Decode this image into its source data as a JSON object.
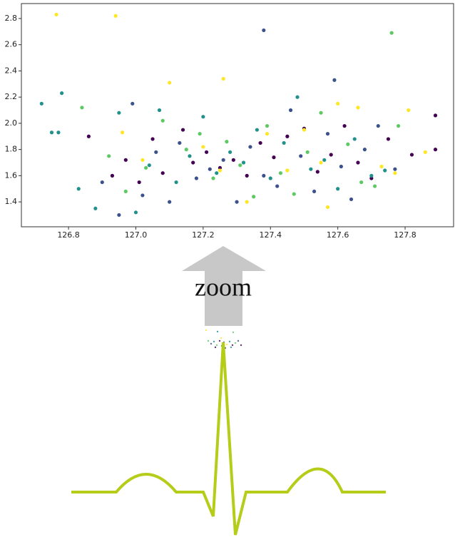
{
  "chart_data": {
    "type": "scatter",
    "xlim": [
      126.66,
      127.944
    ],
    "ylim": [
      1.21,
      2.914
    ],
    "xticks": [
      126.8,
      {
        "value": 127,
        "label": "127.0"
      },
      127.2,
      127.4,
      127.6,
      127.8
    ],
    "yticks": [
      1.4,
      1.6,
      1.8,
      {
        "value": 2,
        "label": "2.0"
      },
      2.2,
      2.4,
      2.6,
      2.8
    ],
    "annotations": [
      "zoom"
    ],
    "series": [
      {
        "color": "#440154",
        "x": [
          126.86,
          126.93,
          126.97,
          127.01,
          127.05,
          127.08,
          127.14,
          127.17,
          127.21,
          127.25,
          127.29,
          127.33,
          127.37,
          127.41,
          127.45,
          127.5,
          127.54,
          127.58,
          127.62,
          127.66,
          127.7,
          127.75,
          127.82,
          127.89,
          127.89
        ],
        "y": [
          1.9,
          1.6,
          1.72,
          1.55,
          1.88,
          1.62,
          1.95,
          1.7,
          1.78,
          1.66,
          1.72,
          1.6,
          1.85,
          1.74,
          1.9,
          1.96,
          1.63,
          1.76,
          1.98,
          1.7,
          1.58,
          1.88,
          1.76,
          2.06,
          1.8
        ]
      },
      {
        "color": "#3b528b",
        "x": [
          126.9,
          126.95,
          126.99,
          127.02,
          127.06,
          127.1,
          127.13,
          127.18,
          127.22,
          127.26,
          127.3,
          127.34,
          127.38,
          127.42,
          127.46,
          127.49,
          127.53,
          127.57,
          127.61,
          127.64,
          127.68,
          127.72,
          127.77,
          127.38,
          127.59
        ],
        "y": [
          1.55,
          1.3,
          2.15,
          1.45,
          1.78,
          1.4,
          1.85,
          1.58,
          1.65,
          1.72,
          1.4,
          1.82,
          1.6,
          1.52,
          2.1,
          1.75,
          1.48,
          1.92,
          1.67,
          1.42,
          1.8,
          1.98,
          1.65,
          2.71,
          2.33
        ]
      },
      {
        "color": "#21918c",
        "x": [
          126.72,
          126.78,
          126.75,
          126.77,
          126.83,
          126.88,
          126.95,
          127.0,
          127.04,
          127.07,
          127.12,
          127.16,
          127.2,
          127.24,
          127.28,
          127.32,
          127.36,
          127.4,
          127.44,
          127.48,
          127.52,
          127.56,
          127.6,
          127.65,
          127.7,
          127.74
        ],
        "y": [
          2.15,
          2.23,
          1.93,
          1.93,
          1.5,
          1.35,
          2.08,
          1.32,
          1.68,
          2.1,
          1.55,
          1.75,
          2.05,
          1.62,
          1.78,
          1.7,
          1.95,
          1.58,
          1.85,
          2.2,
          1.65,
          1.72,
          1.5,
          1.88,
          1.6,
          1.64
        ]
      },
      {
        "color": "#5ec962",
        "x": [
          126.84,
          126.92,
          126.97,
          127.03,
          127.08,
          127.15,
          127.19,
          127.23,
          127.27,
          127.31,
          127.35,
          127.39,
          127.43,
          127.47,
          127.51,
          127.55,
          127.63,
          127.67,
          127.71,
          127.76,
          127.78
        ],
        "y": [
          2.12,
          1.75,
          1.48,
          1.66,
          2.02,
          1.8,
          1.92,
          1.58,
          1.86,
          1.68,
          1.44,
          1.98,
          1.62,
          1.46,
          1.78,
          2.08,
          1.84,
          1.55,
          1.52,
          2.69,
          1.98
        ]
      },
      {
        "color": "#fde725",
        "x": [
          126.764,
          126.94,
          126.96,
          127.02,
          127.1,
          127.2,
          127.26,
          127.25,
          127.33,
          127.39,
          127.45,
          127.5,
          127.55,
          127.57,
          127.6,
          127.66,
          127.73,
          127.77,
          127.81,
          127.86
        ],
        "y": [
          2.83,
          2.82,
          1.93,
          1.72,
          2.31,
          1.82,
          2.34,
          1.64,
          1.4,
          1.92,
          1.64,
          1.95,
          1.7,
          1.36,
          2.15,
          2.12,
          1.67,
          1.62,
          2.1,
          1.78
        ]
      }
    ]
  }
}
